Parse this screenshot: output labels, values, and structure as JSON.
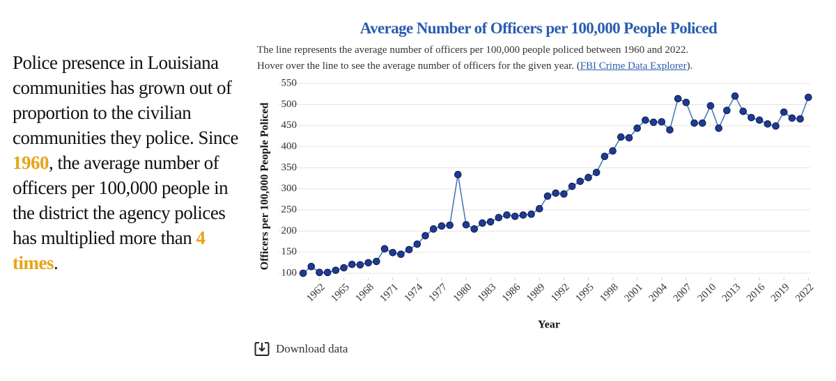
{
  "story": {
    "part1": "Police presence in Louisiana communities has grown out of proportion to the civilian communities they police. Since ",
    "highlight1": "1960",
    "part2": ", the average number of officers per 100,000 people in the district the agency polices has multiplied more than ",
    "highlight2": "4 times",
    "part3": "."
  },
  "chart_data": {
    "type": "line",
    "title": "Average Number of Officers per 100,000 People Policed",
    "subtitle_line1": "The line represents the average number of officers per 100,000 people policed between 1960 and 2022.",
    "subtitle_line2_before": "Hover over the line to see the average number of officers for the given year.  (",
    "subtitle_link": "FBI Crime Data Explorer",
    "subtitle_line2_after": ").",
    "x_label": "Year",
    "y_label": "Officers per 100,000 People Policed",
    "x": [
      1960,
      1961,
      1962,
      1963,
      1964,
      1965,
      1966,
      1967,
      1968,
      1969,
      1970,
      1971,
      1972,
      1973,
      1974,
      1975,
      1976,
      1977,
      1978,
      1979,
      1980,
      1981,
      1982,
      1983,
      1984,
      1985,
      1986,
      1987,
      1988,
      1989,
      1990,
      1991,
      1992,
      1993,
      1994,
      1995,
      1996,
      1997,
      1998,
      1999,
      2000,
      2001,
      2002,
      2003,
      2004,
      2005,
      2006,
      2007,
      2008,
      2009,
      2010,
      2011,
      2012,
      2013,
      2014,
      2015,
      2016,
      2017,
      2018,
      2019,
      2020,
      2021,
      2022
    ],
    "series": [
      {
        "name": "Officers per 100,000",
        "color": "#4a7ab8",
        "marker_color": "#1f3a93",
        "values": [
          100,
          116,
          102,
          102,
          107,
          113,
          121,
          120,
          125,
          128,
          158,
          149,
          145,
          156,
          169,
          189,
          205,
          212,
          214,
          334,
          215,
          205,
          219,
          222,
          232,
          238,
          235,
          238,
          240,
          253,
          283,
          290,
          288,
          306,
          318,
          327,
          339,
          377,
          390,
          423,
          421,
          444,
          463,
          458,
          459,
          440,
          514,
          505,
          456,
          456,
          497,
          444,
          486,
          520,
          484,
          469,
          463,
          454,
          449,
          482,
          468,
          466,
          517
        ]
      }
    ],
    "xlim": [
      1957,
      2023
    ],
    "xticks": [
      1962,
      1965,
      1968,
      1971,
      1974,
      1977,
      1980,
      1983,
      1986,
      1989,
      1992,
      1995,
      1998,
      2001,
      2004,
      2007,
      2010,
      2013,
      2016,
      2019,
      2022
    ],
    "ylim": [
      90,
      555
    ],
    "yticks": [
      100,
      150,
      200,
      250,
      300,
      350,
      400,
      450,
      500,
      550
    ],
    "grid": true
  },
  "download": "Download data"
}
